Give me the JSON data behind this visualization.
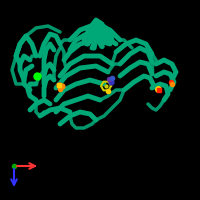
{
  "background_color": "#000000",
  "figure_size": [
    2.0,
    2.0
  ],
  "dpi": 100,
  "protein_color": "#00A878",
  "protein_color2": "#008060",
  "protein_color3": "#007050",
  "ligand_colors": {
    "yellow": "#CCCC00",
    "red": "#FF2200",
    "orange": "#FF8800",
    "blue": "#0044FF",
    "green_small": "#00FF00",
    "sulfur": "#FFCC00"
  },
  "axis_x_color": "#FF3333",
  "axis_y_color": "#3333FF",
  "axis_origin_color": "#00AA00"
}
